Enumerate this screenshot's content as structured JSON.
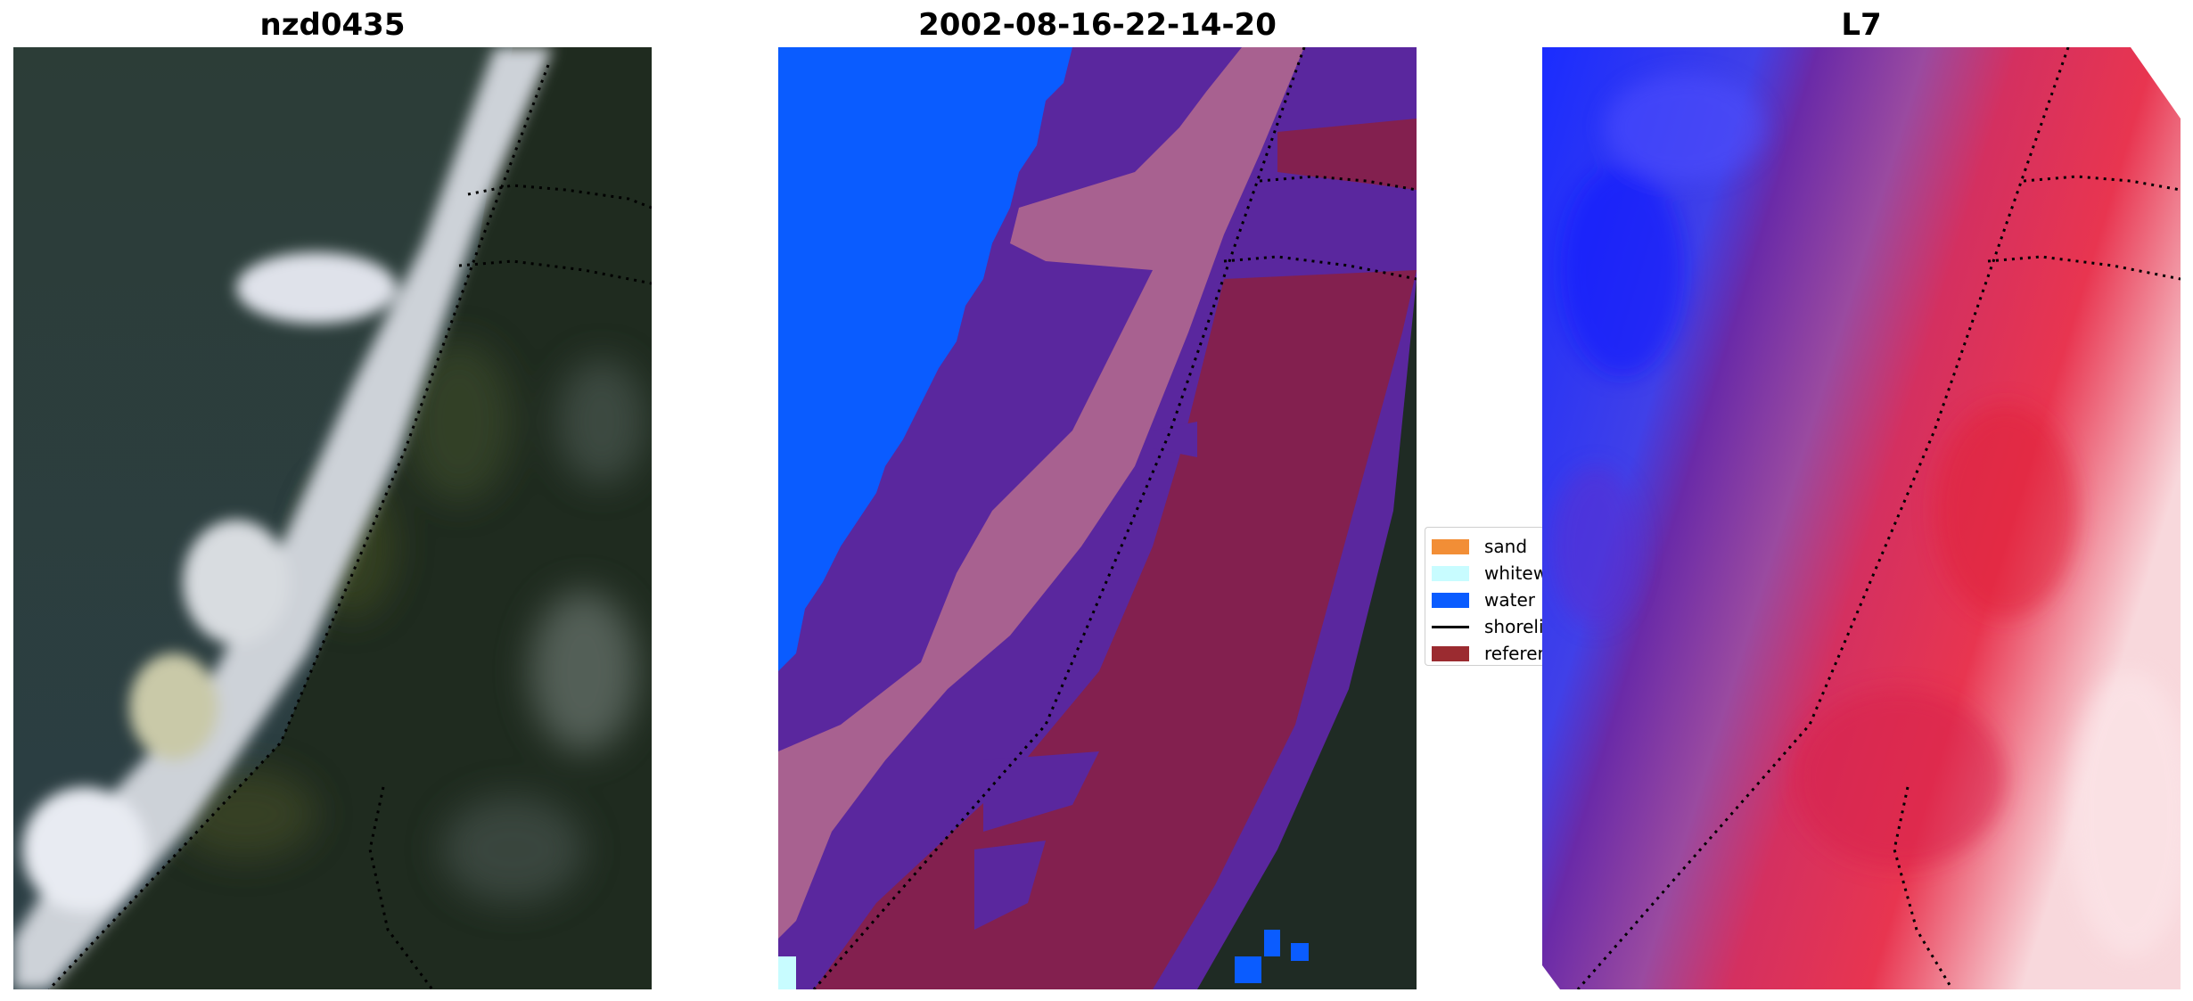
{
  "panels": [
    {
      "title": "nzd0435",
      "icon": "rgb-satellite-image"
    },
    {
      "title": "2002-08-16-22-14-20",
      "icon": "classified-overlay-image"
    },
    {
      "title": "L7",
      "icon": "index-heatmap-image"
    }
  ],
  "legend": {
    "items": [
      {
        "label": "sand",
        "color": "#f28e36",
        "kind": "patch"
      },
      {
        "label": "whitewater",
        "color": "#c8fcff",
        "kind": "patch"
      },
      {
        "label": "water",
        "color": "#0a5cff",
        "kind": "patch"
      },
      {
        "label": "shoreline",
        "color": "#000000",
        "kind": "line"
      },
      {
        "label": "reference",
        "color": "#9b2b30",
        "kind": "patch"
      }
    ]
  },
  "colors": {
    "water_class": "#0a5cff",
    "land_class": "#5b279e",
    "whitewater_overlay": "#a86190",
    "reference_overlay": "#83204f",
    "dark_land": "#1d2b22",
    "sea_tone": "#2b3d3a"
  }
}
